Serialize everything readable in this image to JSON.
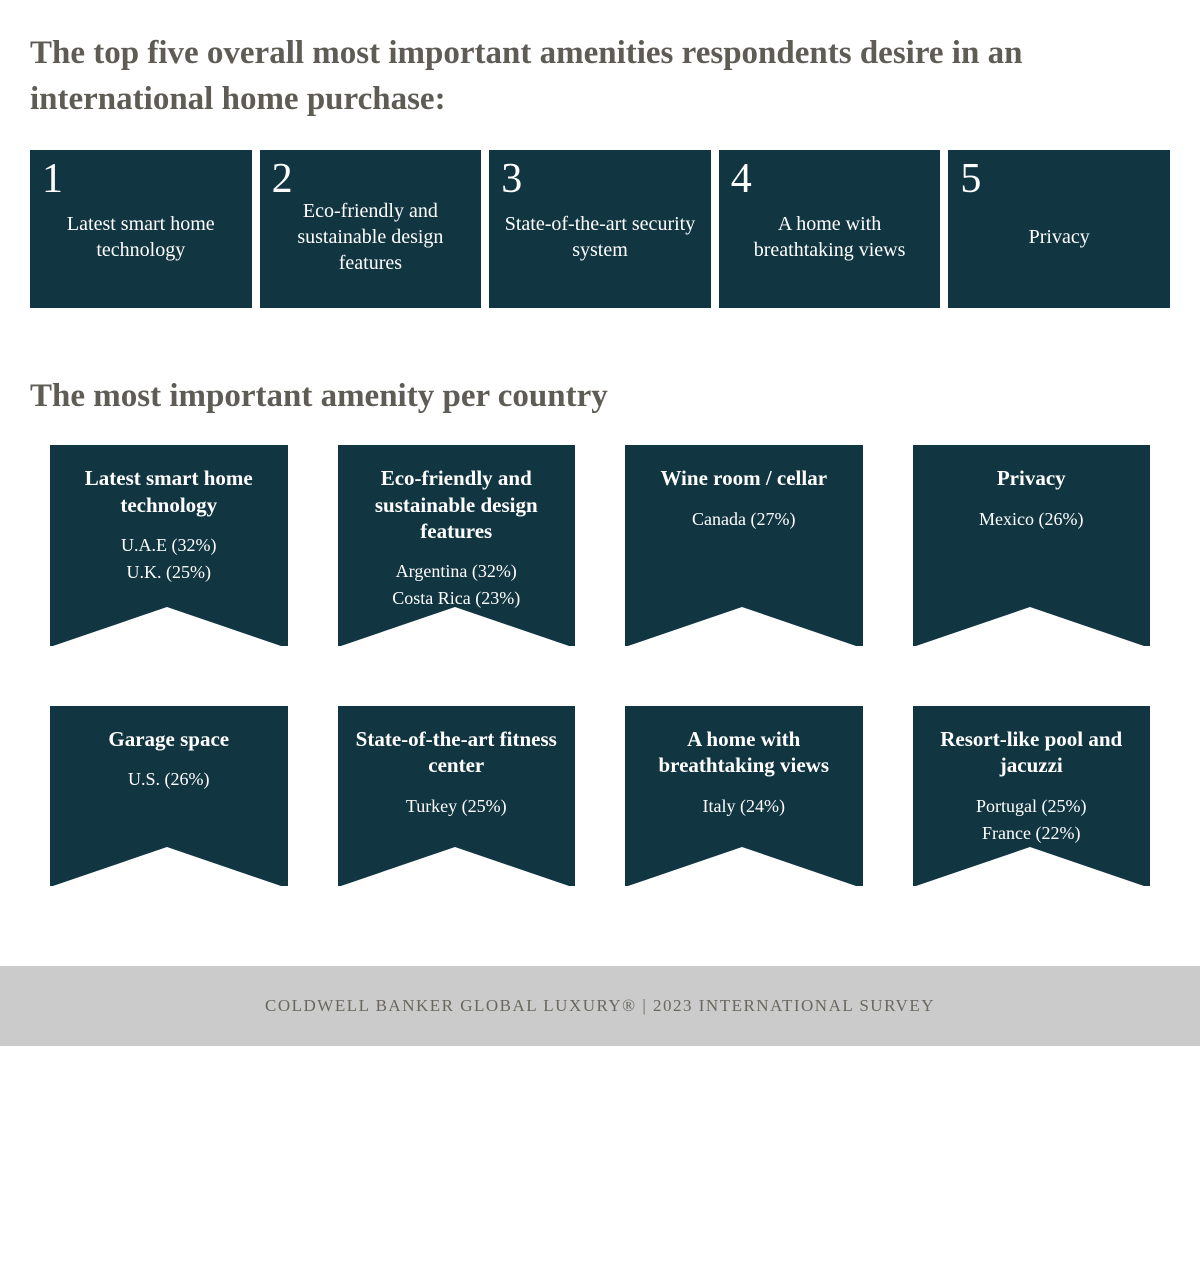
{
  "colors": {
    "card_bg": "#113642",
    "card_text": "#ffffff",
    "heading_text": "#5f5c56",
    "page_bg": "#ffffff",
    "footer_bg": "#cbcbcb",
    "footer_text": "#6a675f"
  },
  "typography": {
    "heading_fontsize": 33,
    "top_number_fontsize": 42,
    "top_label_fontsize": 20,
    "banner_title_fontsize": 21,
    "banner_line_fontsize": 18,
    "footer_fontsize": 17
  },
  "heading_main": "The top five overall most important amenities respondents desire in an international home purchase:",
  "top_five": [
    {
      "num": "1",
      "label": "Latest smart home technology"
    },
    {
      "num": "2",
      "label": "Eco-friendly and sustainable design features"
    },
    {
      "num": "3",
      "label": "State-of-the-art security system"
    },
    {
      "num": "4",
      "label": "A home with breathtaking views"
    },
    {
      "num": "5",
      "label": "Privacy"
    }
  ],
  "heading_country": "The most important amenity per country",
  "banners": [
    {
      "title": "Latest smart home technology",
      "lines": [
        "U.A.E (32%)",
        "U.K. (25%)"
      ]
    },
    {
      "title": "Eco-friendly and sustainable design features",
      "lines": [
        "Argentina (32%)",
        "Costa Rica (23%)"
      ]
    },
    {
      "title": "Wine room / cellar",
      "lines": [
        "Canada (27%)"
      ]
    },
    {
      "title": "Privacy",
      "lines": [
        "Mexico (26%)"
      ]
    },
    {
      "title": "Garage space",
      "lines": [
        "U.S. (26%)"
      ]
    },
    {
      "title": "State-of-the-art fitness center",
      "lines": [
        "Turkey (25%)"
      ]
    },
    {
      "title": "A home with breathtaking views",
      "lines": [
        "Italy (24%)"
      ]
    },
    {
      "title": "Resort-like pool and jacuzzi",
      "lines": [
        "Portugal (25%)",
        "France (22%)"
      ]
    }
  ],
  "footer": "COLDWELL BANKER GLOBAL LUXURY® | 2023 INTERNATIONAL SURVEY"
}
